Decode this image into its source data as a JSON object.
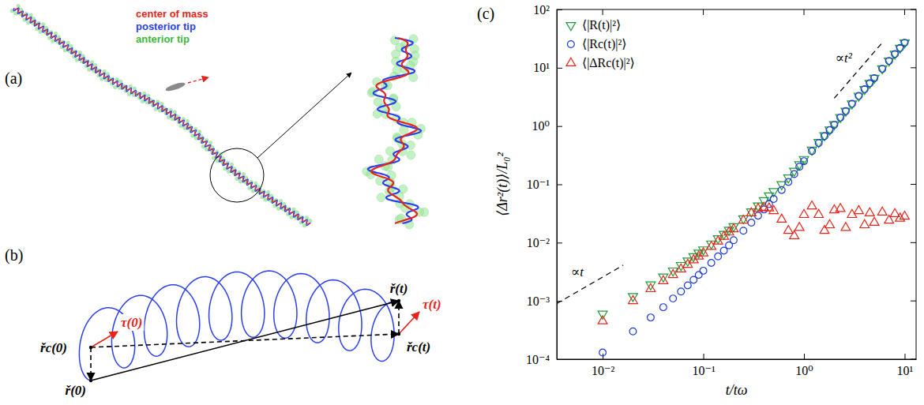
{
  "panel_labels": [
    "(a)",
    "(b)",
    "(c)"
  ],
  "panel_a": {
    "legend": [
      {
        "name": "center of mass",
        "color": "#e8241a"
      },
      {
        "name": "posterior tip",
        "color": "#2a3ff0"
      },
      {
        "name": "anterior tip",
        "color": "#3cb83c"
      }
    ]
  },
  "panel_b": {
    "labels": {
      "r0": "ř(0)",
      "rc0": "řc(0)",
      "tau0": "τ(0)",
      "rt": "ř(t)",
      "rct": "řc(t)",
      "taut": "τ(t)"
    }
  },
  "chart_data": {
    "type": "scatter",
    "x_label": "t/tω",
    "y_label": "⟨Δr²(t)⟩/L₀²",
    "log": true,
    "legend": "upper left",
    "xlim": [
      0.0035,
      13
    ],
    "ylim": [
      0.0001,
      100
    ],
    "xticks": [
      {
        "value": 0.01,
        "label": "10⁻²"
      },
      {
        "value": 0.1,
        "label": "10⁻¹"
      },
      {
        "value": 1,
        "label": "10⁰"
      },
      {
        "value": 10,
        "label": "10¹"
      }
    ],
    "yticks": [
      {
        "value": 0.0001,
        "label": "10⁻⁴"
      },
      {
        "value": 0.001,
        "label": "10⁻³"
      },
      {
        "value": 0.01,
        "label": "10⁻²"
      },
      {
        "value": 0.1,
        "label": "10⁻¹"
      },
      {
        "value": 1,
        "label": "10⁰"
      },
      {
        "value": 10,
        "label": "10¹"
      },
      {
        "value": 100,
        "label": "10²"
      }
    ],
    "x": [
      0.01,
      0.02,
      0.03,
      0.04,
      0.05,
      0.06,
      0.07,
      0.08,
      0.09,
      0.1,
      0.12,
      0.14,
      0.16,
      0.18,
      0.2,
      0.25,
      0.3,
      0.35,
      0.4,
      0.45,
      0.5,
      0.6,
      0.7,
      0.8,
      0.9,
      1.0,
      1.2,
      1.4,
      1.6,
      1.8,
      2.0,
      2.3,
      2.6,
      3.0,
      3.5,
      4,
      4.5,
      5,
      6,
      7,
      8,
      9,
      10
    ],
    "series": [
      {
        "name": "⟨|R(t)|²⟩",
        "color": "#1f9a3a",
        "marker": "triangle-down",
        "values": [
          0.0006,
          0.0012,
          0.0019,
          0.0026,
          0.0033,
          0.0041,
          0.0049,
          0.0058,
          0.0067,
          0.0076,
          0.0096,
          0.0118,
          0.014,
          0.0165,
          0.019,
          0.026,
          0.034,
          0.043,
          0.053,
          0.064,
          0.076,
          0.1,
          0.13,
          0.17,
          0.22,
          0.27,
          0.39,
          0.53,
          0.69,
          0.87,
          1.07,
          1.42,
          1.82,
          2.42,
          3.3,
          4.3,
          5.45,
          6.7,
          9.7,
          13.2,
          17.3,
          21.9,
          27
        ]
      },
      {
        "name": "⟨|Rc(t)|²⟩",
        "color": "#1a3ad6",
        "marker": "circle",
        "values": [
          0.00013,
          0.0003,
          0.00052,
          0.00078,
          0.0011,
          0.00145,
          0.00185,
          0.0023,
          0.0028,
          0.0033,
          0.0045,
          0.0058,
          0.0073,
          0.009,
          0.011,
          0.016,
          0.022,
          0.029,
          0.037,
          0.046,
          0.056,
          0.08,
          0.11,
          0.15,
          0.2,
          0.25,
          0.37,
          0.51,
          0.67,
          0.85,
          1.05,
          1.4,
          1.8,
          2.4,
          3.28,
          4.28,
          5.4,
          6.65,
          9.6,
          13.1,
          17.2,
          21.8,
          26.9
        ]
      },
      {
        "name": "⟨|ΔRc(t)|²⟩",
        "color": "#e8241a",
        "marker": "triangle-up",
        "values": [
          0.00045,
          0.001,
          0.0016,
          0.0022,
          0.0028,
          0.0035,
          0.0042,
          0.005,
          0.0058,
          0.0066,
          0.0085,
          0.0105,
          0.0127,
          0.015,
          0.017,
          0.024,
          0.032,
          0.038,
          0.04,
          0.039,
          0.035,
          0.025,
          0.016,
          0.013,
          0.018,
          0.03,
          0.042,
          0.03,
          0.016,
          0.02,
          0.036,
          0.038,
          0.018,
          0.03,
          0.035,
          0.02,
          0.032,
          0.022,
          0.033,
          0.024,
          0.031,
          0.026,
          0.028
        ]
      }
    ],
    "annotations": [
      {
        "text": "∝t²",
        "x": [
          2,
          6
        ],
        "y": [
          3,
          27
        ],
        "line_style": "dashed"
      },
      {
        "text": "∝t",
        "x": [
          0.0035,
          0.016
        ],
        "y": [
          0.0009,
          0.0041
        ],
        "line_style": "dashed"
      }
    ]
  }
}
